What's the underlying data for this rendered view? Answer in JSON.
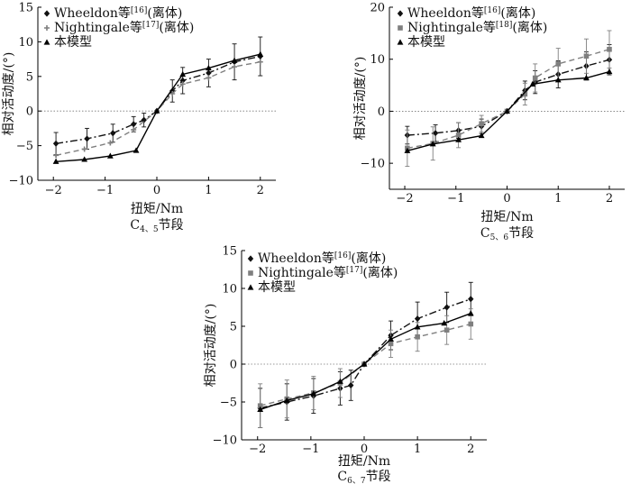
{
  "charts": [
    {
      "id": "c45",
      "type": "line",
      "xlabel": "扭矩/Nm",
      "ylabel": "相对活动度/(°)",
      "caption_main": "C",
      "caption_sub": "4、5",
      "caption_tail": "节段",
      "xlim": [
        -2.3,
        2.3
      ],
      "ylim": [
        -10,
        15
      ],
      "xticks": [
        -2,
        -1,
        0,
        1,
        2
      ],
      "yticks": [
        -10,
        -5,
        0,
        5,
        10,
        15
      ],
      "series": [
        {
          "name": "Wheeldon等",
          "ref": "[16]",
          "tail": "(离体)",
          "style": "dashdot",
          "marker": "diamond",
          "color": "#111111",
          "points": [
            [
              -1.95,
              -4.7
            ],
            [
              -1.35,
              -4.0
            ],
            [
              -0.85,
              -3.2
            ],
            [
              -0.45,
              -1.9
            ],
            [
              -0.25,
              -1.3
            ],
            [
              0,
              0
            ],
            [
              0.3,
              2.9
            ],
            [
              0.5,
              4.4
            ],
            [
              1.0,
              5.5
            ],
            [
              1.5,
              7.1
            ],
            [
              2.0,
              7.9
            ]
          ],
          "err": [
            1.6,
            1.5,
            1.3,
            1.1,
            1.0,
            0,
            1.6,
            1.9,
            2.0,
            2.6,
            2.8
          ]
        },
        {
          "name": "Nightingale等",
          "ref": "[17]",
          "tail": "(离体)",
          "style": "dashed",
          "marker": "plus",
          "color": "#7f7f7f",
          "points": [
            [
              -1.95,
              -6.4
            ],
            [
              -1.4,
              -5.5
            ],
            [
              -0.9,
              -4.6
            ],
            [
              -0.45,
              -2.7
            ],
            [
              0,
              0
            ],
            [
              0.3,
              2.5
            ],
            [
              0.5,
              3.9
            ],
            [
              1.0,
              4.8
            ],
            [
              1.5,
              6.4
            ],
            [
              2.0,
              7.1
            ]
          ],
          "err": [
            0,
            0,
            0,
            0,
            0,
            0,
            0,
            0,
            0,
            0
          ]
        },
        {
          "name": "本模型",
          "ref": "",
          "tail": "",
          "style": "solid",
          "marker": "triangle",
          "color": "#000000",
          "points": [
            [
              -1.95,
              -7.3
            ],
            [
              -1.4,
              -7.0
            ],
            [
              -0.9,
              -6.5
            ],
            [
              -0.4,
              -5.7
            ],
            [
              0,
              0
            ],
            [
              0.5,
              5.3
            ],
            [
              1.0,
              6.2
            ],
            [
              1.5,
              7.3
            ],
            [
              2.0,
              8.2
            ]
          ],
          "err": [
            0,
            0,
            0,
            0,
            0,
            0,
            0,
            0,
            0
          ]
        }
      ]
    },
    {
      "id": "c56",
      "type": "line",
      "xlabel": "扭矩/Nm",
      "ylabel": "相对活动度/(°)",
      "caption_main": "C",
      "caption_sub": "5、6",
      "caption_tail": "节段",
      "xlim": [
        -2.3,
        2.3
      ],
      "ylim": [
        -15,
        20
      ],
      "xticks": [
        -2,
        -1,
        0,
        1,
        2
      ],
      "yticks": [
        -10,
        0,
        10,
        20
      ],
      "series": [
        {
          "name": "Wheeldon等",
          "ref": "[16]",
          "tail": "(离体)",
          "style": "dashdot",
          "marker": "diamond",
          "color": "#111111",
          "points": [
            [
              -1.95,
              -4.6
            ],
            [
              -1.4,
              -4.2
            ],
            [
              -0.95,
              -3.7
            ],
            [
              -0.5,
              -2.9
            ],
            [
              0,
              0
            ],
            [
              0.35,
              4.0
            ],
            [
              0.55,
              5.6
            ],
            [
              1.0,
              7.1
            ],
            [
              1.55,
              8.7
            ],
            [
              2.0,
              9.9
            ]
          ],
          "err": [
            1.7,
            1.6,
            1.5,
            1.4,
            0,
            1.8,
            2.2,
            2.6,
            2.7,
            2.9
          ]
        },
        {
          "name": "Nightingale等",
          "ref": "[18]",
          "tail": "(离体)",
          "style": "dashed",
          "marker": "square",
          "color": "#7f7f7f",
          "points": [
            [
              -1.95,
              -7.1
            ],
            [
              -1.45,
              -6.2
            ],
            [
              -0.95,
              -4.6
            ],
            [
              -0.5,
              -2.4
            ],
            [
              0,
              0
            ],
            [
              0.35,
              3.3
            ],
            [
              0.55,
              6.4
            ],
            [
              1.0,
              9.1
            ],
            [
              1.55,
              10.6
            ],
            [
              2.0,
              11.9
            ]
          ],
          "err": [
            3.5,
            3.2,
            2.4,
            1.6,
            0,
            2.1,
            2.7,
            3.0,
            3.3,
            3.6
          ]
        },
        {
          "name": "本模型",
          "ref": "",
          "tail": "",
          "style": "solid",
          "marker": "triangle",
          "color": "#000000",
          "points": [
            [
              -1.95,
              -7.6
            ],
            [
              -1.45,
              -6.3
            ],
            [
              -0.95,
              -5.5
            ],
            [
              -0.5,
              -4.7
            ],
            [
              0,
              0
            ],
            [
              0.5,
              5.2
            ],
            [
              1.0,
              6.0
            ],
            [
              1.55,
              6.4
            ],
            [
              2.0,
              7.6
            ]
          ],
          "err": [
            0,
            0,
            0,
            0,
            0,
            0,
            0,
            0,
            0
          ]
        }
      ]
    },
    {
      "id": "c67",
      "type": "line",
      "xlabel": "扭矩/Nm",
      "ylabel": "相对活动度/(°)",
      "caption_main": "C",
      "caption_sub": "6、7",
      "caption_tail": "节段",
      "xlim": [
        -2.3,
        2.3
      ],
      "ylim": [
        -10,
        15
      ],
      "xticks": [
        -2,
        -1,
        0,
        1,
        2
      ],
      "yticks": [
        -10,
        -5,
        0,
        5,
        10,
        15
      ],
      "series": [
        {
          "name": "Wheeldon等",
          "ref": "[16]",
          "tail": "(离体)",
          "style": "dashdot",
          "marker": "diamond",
          "color": "#111111",
          "points": [
            [
              -1.95,
              -5.8
            ],
            [
              -1.45,
              -5.0
            ],
            [
              -0.95,
              -4.2
            ],
            [
              -0.45,
              -3.2
            ],
            [
              -0.25,
              -2.8
            ],
            [
              0,
              0
            ],
            [
              0.5,
              3.8
            ],
            [
              1.0,
              6.0
            ],
            [
              1.55,
              7.5
            ],
            [
              2.0,
              8.6
            ]
          ],
          "err": [
            2.6,
            2.4,
            2.3,
            2.2,
            2.0,
            0,
            1.9,
            2.2,
            2.0,
            2.2
          ]
        },
        {
          "name": "Nightingale等",
          "ref": "[17]",
          "tail": "(离体)",
          "style": "dashed",
          "marker": "square",
          "color": "#7f7f7f",
          "points": [
            [
              -1.95,
              -5.5
            ],
            [
              -1.45,
              -4.6
            ],
            [
              -0.95,
              -3.8
            ],
            [
              -0.45,
              -2.5
            ],
            [
              0,
              0
            ],
            [
              0.5,
              2.7
            ],
            [
              1.0,
              3.6
            ],
            [
              1.55,
              4.5
            ],
            [
              2.0,
              5.3
            ]
          ],
          "err": [
            2.9,
            2.5,
            2.2,
            1.9,
            0,
            1.8,
            1.9,
            1.9,
            2.0
          ]
        },
        {
          "name": "本模型",
          "ref": "",
          "tail": "",
          "style": "solid",
          "marker": "triangle",
          "color": "#000000",
          "points": [
            [
              -1.95,
              -6.0
            ],
            [
              -1.45,
              -4.8
            ],
            [
              -0.95,
              -3.9
            ],
            [
              -0.45,
              -2.3
            ],
            [
              0,
              0
            ],
            [
              0.5,
              3.3
            ],
            [
              1.0,
              4.9
            ],
            [
              1.5,
              5.4
            ],
            [
              2.0,
              6.7
            ]
          ],
          "err": [
            0,
            0,
            0,
            0,
            0,
            0,
            0,
            0,
            0
          ]
        }
      ]
    }
  ]
}
